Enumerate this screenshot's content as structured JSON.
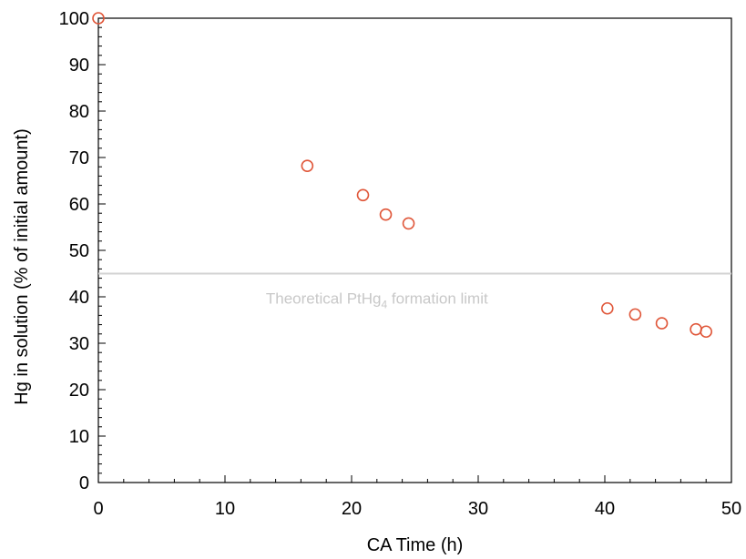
{
  "chart_data": {
    "type": "scatter",
    "xlabel": "CA Time (h)",
    "ylabel": "Hg in solution (% of initial amount)",
    "xlim": [
      0,
      50
    ],
    "ylim": [
      0,
      100
    ],
    "xticks": [
      0,
      10,
      20,
      30,
      40,
      50
    ],
    "yticks": [
      0,
      10,
      20,
      30,
      40,
      50,
      60,
      70,
      80,
      90,
      100
    ],
    "grid": false,
    "marker_color": "#e0573a",
    "reference_line": {
      "y": 45,
      "label_main": "Theoretical PtHg",
      "label_sub": "4",
      "label_tail": " formation limit",
      "color": "#d3d3d3"
    },
    "series": [
      {
        "points": [
          {
            "x": 0,
            "y": 100
          },
          {
            "x": 16.5,
            "y": 68.2
          },
          {
            "x": 20.9,
            "y": 61.9
          },
          {
            "x": 22.7,
            "y": 57.7
          },
          {
            "x": 24.5,
            "y": 55.8
          },
          {
            "x": 40.2,
            "y": 37.5
          },
          {
            "x": 42.4,
            "y": 36.2
          },
          {
            "x": 44.5,
            "y": 34.3
          },
          {
            "x": 47.2,
            "y": 33.0
          },
          {
            "x": 48.0,
            "y": 32.5
          }
        ]
      }
    ]
  }
}
